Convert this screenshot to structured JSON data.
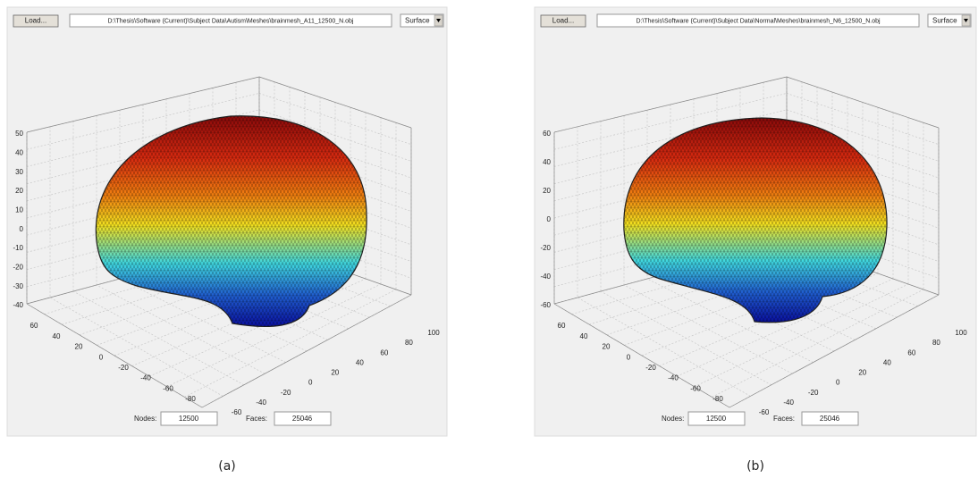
{
  "panels": [
    {
      "load_button": "Load...",
      "file_path": "D:\\Thesis\\Software (Current)\\Subject Data\\Autism\\Meshes\\brainmesh_A11_12500_N.obj",
      "view_mode": "Surface",
      "z_ticks": [
        50,
        40,
        30,
        20,
        10,
        0,
        -10,
        -20,
        -30,
        -40
      ],
      "left_ticks": [
        60,
        40,
        20,
        0,
        -20,
        -40,
        -60,
        -80
      ],
      "right_ticks": [
        -80,
        -60,
        -40,
        -20,
        0,
        20,
        40,
        60,
        80,
        100
      ],
      "nodes_label": "Nodes:",
      "nodes_value": "12500",
      "faces_label": "Faces:",
      "faces_value": "25046",
      "caption": "(a)"
    },
    {
      "load_button": "Load...",
      "file_path": "D:\\Thesis\\Software (Current)\\Subject Data\\Normal\\Meshes\\brainmesh_N6_12500_N.obj",
      "view_mode": "Surface",
      "z_ticks": [
        60,
        40,
        20,
        0,
        -20,
        -40,
        -60
      ],
      "left_ticks": [
        60,
        40,
        20,
        0,
        -20,
        -40,
        -60,
        -80
      ],
      "right_ticks": [
        -80,
        -60,
        -40,
        -20,
        0,
        20,
        40,
        60,
        80,
        100
      ],
      "nodes_label": "Nodes:",
      "nodes_value": "12500",
      "faces_label": "Faces:",
      "faces_value": "25046",
      "caption": "(b)"
    }
  ]
}
